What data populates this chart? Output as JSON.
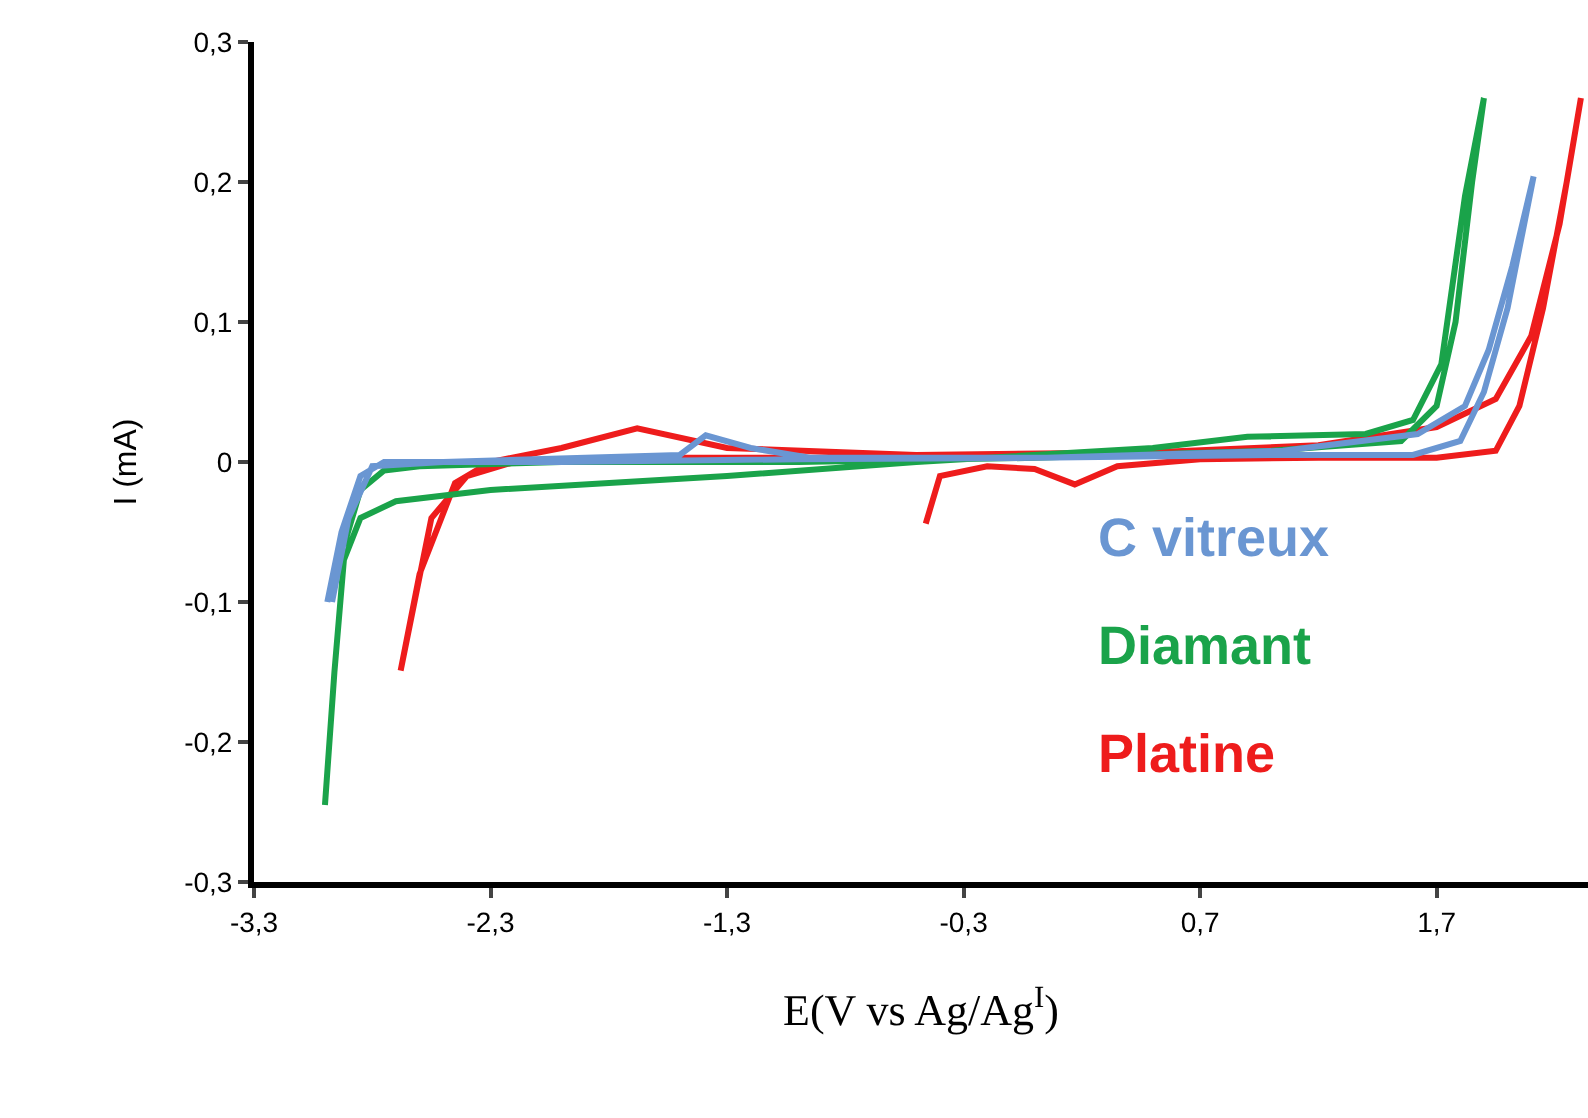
{
  "chart_data": {
    "type": "line",
    "xlabel": "E(V vs Ag/Ag$^{I}$)",
    "ylabel": "I (mA)",
    "xlim": [
      -3.3,
      2.34
    ],
    "ylim": [
      -0.3,
      0.3
    ],
    "xticks": [
      {
        "value": -3.3,
        "label": "-3,3"
      },
      {
        "value": -2.3,
        "label": "-2,3"
      },
      {
        "value": -1.3,
        "label": "-1,3"
      },
      {
        "value": -0.3,
        "label": "-0,3"
      },
      {
        "value": 0.7,
        "label": "0,7"
      },
      {
        "value": 1.7,
        "label": "1,7"
      }
    ],
    "yticks": [
      {
        "value": -0.3,
        "label": "-0,3"
      },
      {
        "value": -0.2,
        "label": "-0,2"
      },
      {
        "value": -0.1,
        "label": "-0,1"
      },
      0,
      {
        "value": 0.1,
        "label": "0,1"
      },
      {
        "value": 0.2,
        "label": "0,2"
      },
      {
        "value": 0.3,
        "label": "0,3"
      }
    ],
    "legend": false,
    "marker": "none",
    "line_style": "solid",
    "series": [
      {
        "name": "C vitreux",
        "color": "#6a96d2",
        "x": [
          -2.99,
          -2.93,
          -2.85,
          -2.75,
          -2.0,
          -1.0,
          0.0,
          1.0,
          1.6,
          1.8,
          1.9,
          2.0,
          2.11,
          2.02,
          1.92,
          1.82,
          1.62,
          1.05,
          0.05,
          -0.95,
          -1.2,
          -1.39,
          -1.5,
          -2.5,
          -2.8,
          -2.9,
          -2.97
        ],
        "values": [
          -0.1,
          -0.05,
          -0.01,
          0.0,
          0.0,
          0.002,
          0.003,
          0.005,
          0.005,
          0.015,
          0.05,
          0.11,
          0.204,
          0.14,
          0.08,
          0.04,
          0.02,
          0.008,
          0.003,
          0.003,
          0.01,
          0.019,
          0.005,
          0.0,
          -0.003,
          -0.04,
          -0.1
        ]
      },
      {
        "name": "Diamant",
        "color": "#1aa34a",
        "x": [
          -3.0,
          -2.96,
          -2.92,
          -2.85,
          -2.7,
          -2.3,
          -1.3,
          -0.5,
          0.5,
          0.9,
          1.4,
          1.6,
          1.72,
          1.82,
          1.9,
          1.85,
          1.78,
          1.7,
          1.55,
          1.0,
          0.0,
          -1.0,
          -2.0,
          -2.6,
          -2.75,
          -2.85,
          -2.92
        ],
        "values": [
          -0.245,
          -0.15,
          -0.07,
          -0.04,
          -0.028,
          -0.02,
          -0.01,
          0.0,
          0.01,
          0.018,
          0.02,
          0.03,
          0.07,
          0.19,
          0.26,
          0.2,
          0.1,
          0.04,
          0.015,
          0.008,
          0.003,
          0.0,
          0.0,
          -0.003,
          -0.006,
          -0.02,
          -0.06
        ]
      },
      {
        "name": "Platine",
        "color": "#ee1c1c",
        "x": [
          -0.46,
          -0.4,
          -0.2,
          0.0,
          0.17,
          0.35,
          0.7,
          1.2,
          1.7,
          1.95,
          2.05,
          2.15,
          2.25,
          2.31,
          2.22,
          2.1,
          1.95,
          1.7,
          1.2,
          0.5,
          -0.5,
          -1.3,
          -1.68,
          -2.0,
          -2.3,
          -2.45,
          -2.6,
          -2.68,
          -2.55,
          -2.4,
          -2.2,
          -1.5,
          -0.5
        ],
        "values": [
          -0.044,
          -0.01,
          -0.003,
          -0.005,
          -0.016,
          -0.003,
          0.002,
          0.003,
          0.003,
          0.008,
          0.04,
          0.11,
          0.2,
          0.26,
          0.17,
          0.09,
          0.045,
          0.025,
          0.012,
          0.007,
          0.005,
          0.01,
          0.024,
          0.01,
          0.0,
          -0.015,
          -0.08,
          -0.149,
          -0.04,
          -0.01,
          0.0,
          0.003,
          0.003
        ]
      }
    ]
  }
}
